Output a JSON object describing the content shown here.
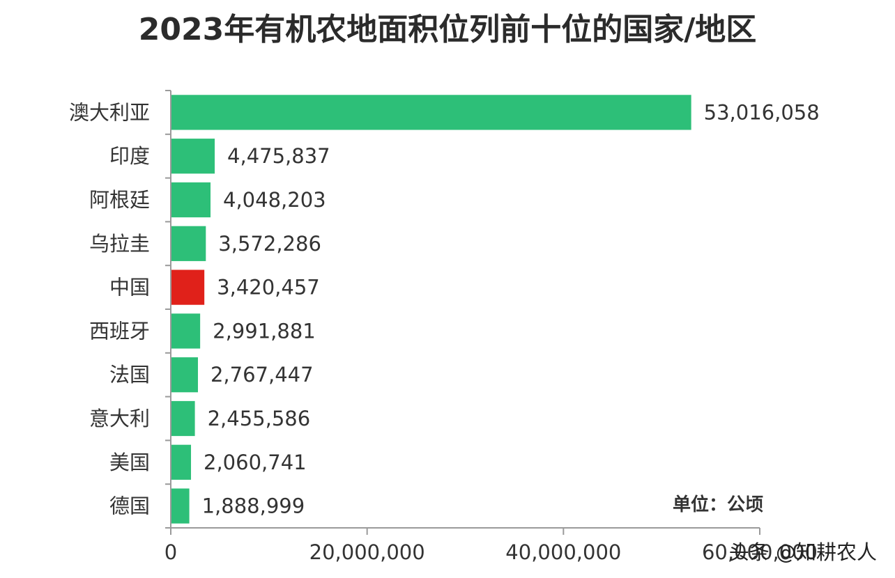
{
  "chart_data": {
    "type": "bar",
    "orientation": "horizontal",
    "title": "2023年有机农地面积位列前十位的国家/地区",
    "categories": [
      "澳大利亚",
      "印度",
      "阿根廷",
      "乌拉圭",
      "中国",
      "西班牙",
      "法国",
      "意大利",
      "美国",
      "德国"
    ],
    "values": [
      53016058,
      4475837,
      4048203,
      3572286,
      3420457,
      2991881,
      2767447,
      2455586,
      2060741,
      1888999
    ],
    "value_labels": [
      "53,016,058",
      "4,475,837",
      "4,048,203",
      "3,572,286",
      "3,420,457",
      "2,991,881",
      "2,767,447",
      "2,455,586",
      "2,060,741",
      "1,888,999"
    ],
    "xlim": [
      0,
      60000000
    ],
    "x_ticks": [
      0,
      20000000,
      40000000,
      60000000
    ],
    "x_tick_labels": [
      "0",
      "20,000,000",
      "40,000,000",
      "60,000,000"
    ],
    "unit_label": "单位：公顷",
    "bar_color": "#2dbf78",
    "highlight_color": "#e0211a",
    "highlight_category": "中国",
    "grid": false,
    "legend": "none"
  },
  "watermark": "头条 @知耕农人"
}
